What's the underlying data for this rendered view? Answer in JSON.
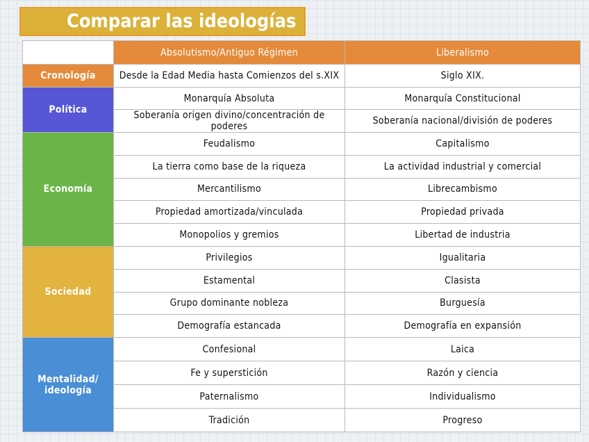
{
  "title": "Comparar las ideologías",
  "headers": [
    "",
    "Absolutismo/Antiguo Régimen",
    "Liberalismo"
  ],
  "colors": {
    "cronologia": "#e58a3a",
    "politica": "#5656d6",
    "economia": "#6bb548",
    "sociedad": "#e2b33e",
    "mentalidad": "#4a8fd6"
  },
  "groups": [
    {
      "label": "Cronología",
      "key": "cronologia",
      "rows": [
        [
          "Desde la Edad Media hasta Comienzos del s.XIX",
          "Siglo XIX."
        ]
      ]
    },
    {
      "label": "Política",
      "key": "politica",
      "rows": [
        [
          "Monarquía Absoluta",
          "Monarquía Constitucional"
        ],
        [
          "Soberanía origen divino/concentración de poderes",
          "Soberanía nacional/división de poderes"
        ]
      ]
    },
    {
      "label": "Economía",
      "key": "economia",
      "rows": [
        [
          "Feudalismo",
          "Capitalismo"
        ],
        [
          "La tierra como base de la riqueza",
          "La actividad industrial y comercial"
        ],
        [
          "Mercantilismo",
          "Librecambismo"
        ],
        [
          "Propiedad amortizada/vinculada",
          "Propiedad privada"
        ],
        [
          "Monopolios y gremios",
          "Libertad de industria"
        ]
      ]
    },
    {
      "label": "Sociedad",
      "key": "sociedad",
      "rows": [
        [
          "Privilegios",
          "Igualitaria"
        ],
        [
          "Estamental",
          "Clasista"
        ],
        [
          "Grupo dominante nobleza",
          "Burguesía"
        ],
        [
          "Demografía estancada",
          "Demografía en expansión"
        ]
      ]
    },
    {
      "label": "Mentalidad/ ideología",
      "key": "mentalidad",
      "rows": [
        [
          "Confesional",
          "Laica"
        ],
        [
          "Fe y superstición",
          "Razón y ciencia"
        ],
        [
          "Paternalismo",
          "Individualismo"
        ],
        [
          "Tradición",
          "Progreso"
        ]
      ]
    }
  ]
}
